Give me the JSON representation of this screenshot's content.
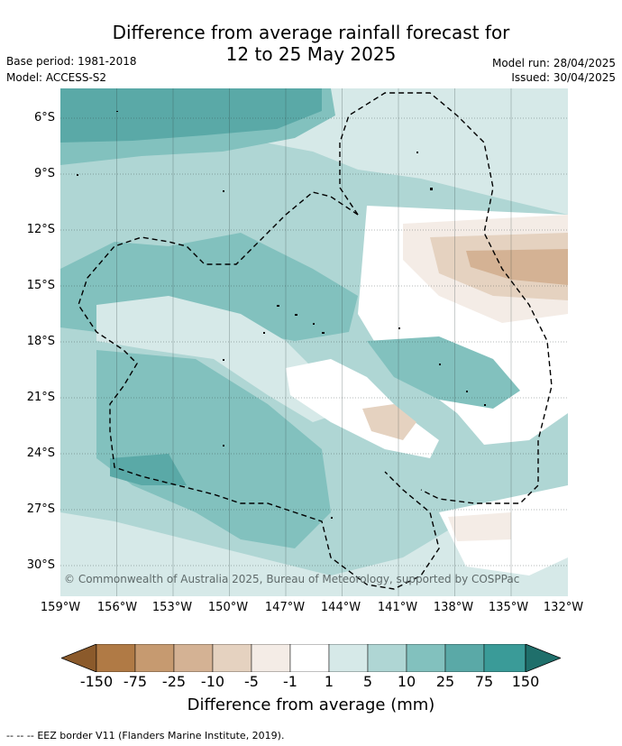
{
  "header": {
    "title_line1": "Difference from average rainfall forecast for",
    "title_line2": "12 to 25 May 2025",
    "base_period": "Base period: 1981-2018",
    "model": "Model: ACCESS-S2",
    "model_run": "Model run: 28/04/2025",
    "issued": "Issued: 30/04/2025"
  },
  "map": {
    "lat_ticks": [
      "6°S",
      "9°S",
      "12°S",
      "15°S",
      "18°S",
      "21°S",
      "24°S",
      "27°S",
      "30°S"
    ],
    "lon_ticks": [
      "159°W",
      "156°W",
      "153°W",
      "150°W",
      "147°W",
      "144°W",
      "141°W",
      "138°W",
      "135°W",
      "132°W"
    ],
    "copyright": "© Commonwealth of Australia 2025, Bureau of Meteorology, supported by COSPPac"
  },
  "colorbar": {
    "labels": [
      "-150",
      "-75",
      "-25",
      "-10",
      "-5",
      "-1",
      "1",
      "5",
      "10",
      "25",
      "75",
      "150"
    ],
    "colors": [
      "#8b5a2b",
      "#b07a45",
      "#c69a70",
      "#d4b294",
      "#e5d2c0",
      "#f4ece6",
      "#ffffff",
      "#d6e9e8",
      "#afd6d4",
      "#82c1be",
      "#5aa9a7",
      "#3a9b98",
      "#1f6f6b"
    ],
    "title": "Difference from average (mm)"
  },
  "footer": {
    "legend_symbol": "--  --  --",
    "legend_text": "EEZ border V11 (Flanders Marine Institute, 2019)."
  }
}
